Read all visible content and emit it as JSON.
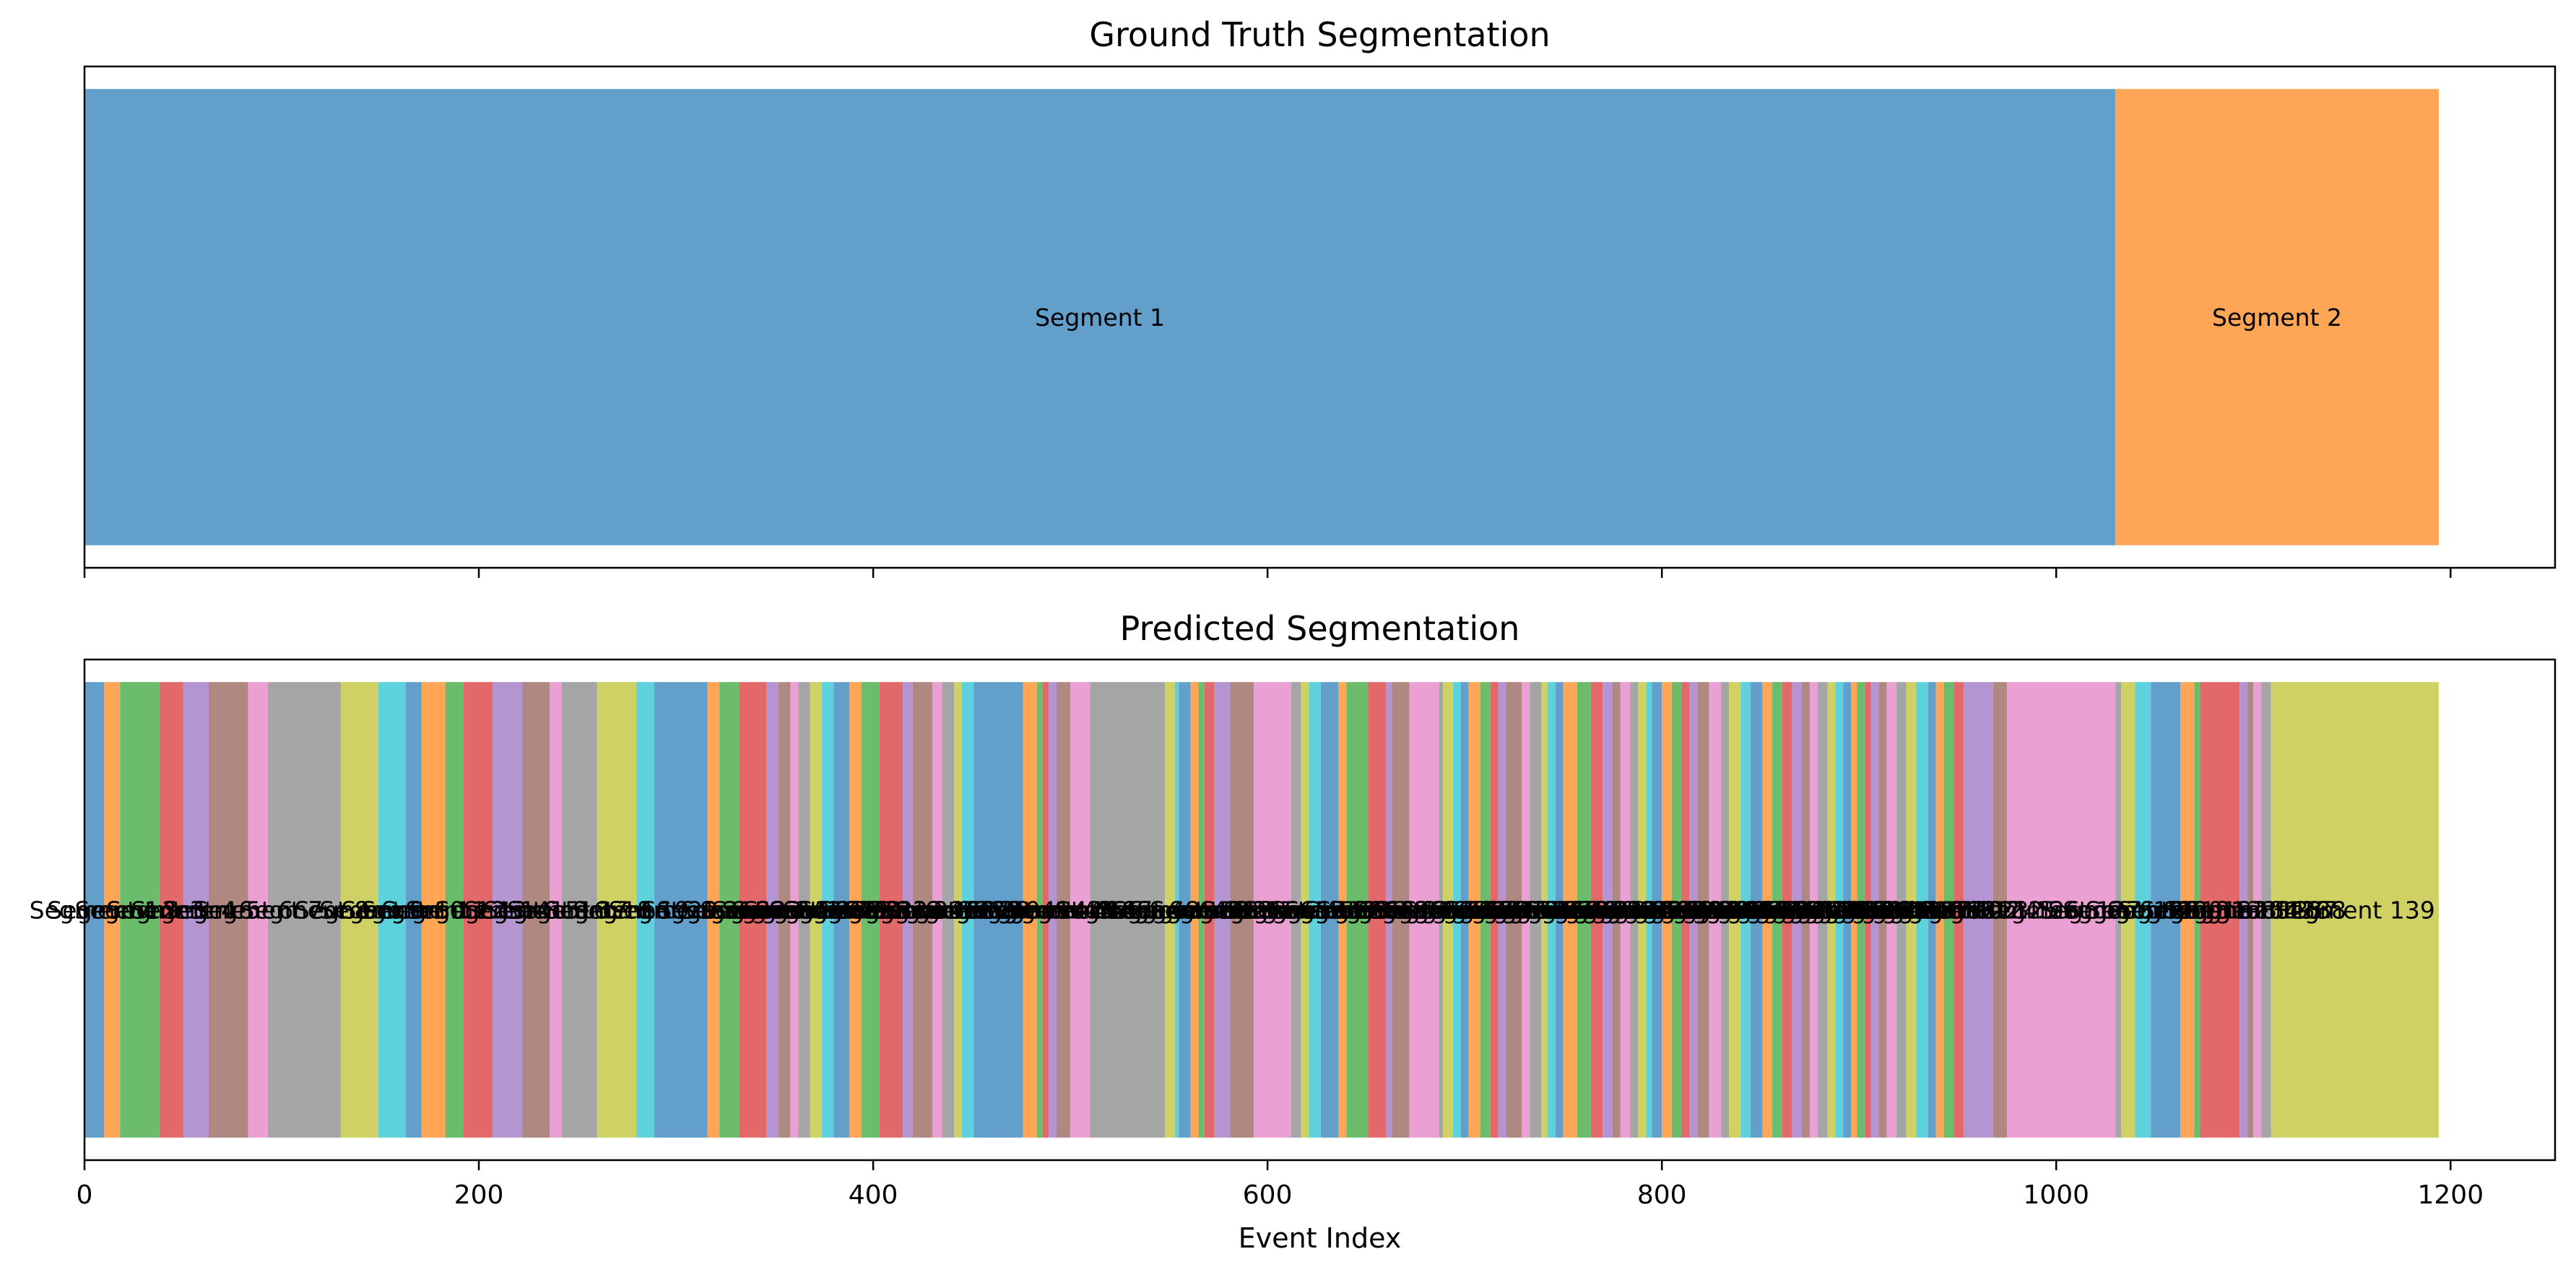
{
  "chart_data": [
    {
      "type": "bar",
      "orientation": "horizontal-segments",
      "title": "Ground Truth Segmentation",
      "xlabel": "",
      "xlim": [
        0,
        1253
      ],
      "segments": [
        {
          "label": "Segment 1",
          "start": 0,
          "end": 1030,
          "color": "#1f77b4"
        },
        {
          "label": "Segment 2",
          "start": 1030,
          "end": 1194,
          "color": "#ff7f0e"
        }
      ]
    },
    {
      "type": "bar",
      "orientation": "horizontal-segments",
      "title": "Predicted Segmentation",
      "xlabel": "Event Index",
      "xlim": [
        0,
        1253
      ],
      "xticks": [
        "0",
        "200",
        "400",
        "600",
        "800",
        "1000",
        "1200"
      ],
      "boundaries": [
        0,
        10,
        18,
        38,
        50,
        63,
        83,
        93,
        130,
        149,
        163,
        171,
        183,
        192,
        207,
        222,
        236,
        242,
        260,
        280,
        289,
        316,
        322,
        332,
        346,
        352,
        358,
        362,
        368,
        374,
        380,
        388,
        394,
        403,
        415,
        420,
        430,
        435,
        441,
        445,
        451,
        476,
        483,
        486,
        489,
        493,
        500,
        510,
        548,
        553,
        555,
        561,
        565,
        568,
        573,
        581,
        593,
        612,
        617,
        621,
        627,
        636,
        640,
        651,
        660,
        663,
        672,
        687,
        689,
        694,
        698,
        702,
        708,
        713,
        717,
        721,
        729,
        733,
        739,
        742,
        746,
        750,
        757,
        764,
        770,
        775,
        779,
        784,
        788,
        792,
        795,
        800,
        805,
        810,
        814,
        818,
        824,
        830,
        834,
        840,
        845,
        851,
        856,
        861,
        866,
        871,
        875,
        879,
        884,
        888,
        892,
        896,
        899,
        903,
        906,
        910,
        914,
        919,
        924,
        929,
        935,
        939,
        943,
        948,
        953,
        968,
        975,
        1030,
        1033,
        1040,
        1048,
        1063,
        1070,
        1073,
        1093,
        1097,
        1100,
        1104,
        1109,
        1194
      ],
      "labels_prefix": "Segment",
      "visible_last_label": "Segment 138",
      "colors": [
        "#1f77b4",
        "#ff7f0e",
        "#2ca02c",
        "#d62728",
        "#9467bd",
        "#8c564b",
        "#e377c2",
        "#7f7f7f",
        "#bcbd22",
        "#17becf"
      ]
    }
  ]
}
